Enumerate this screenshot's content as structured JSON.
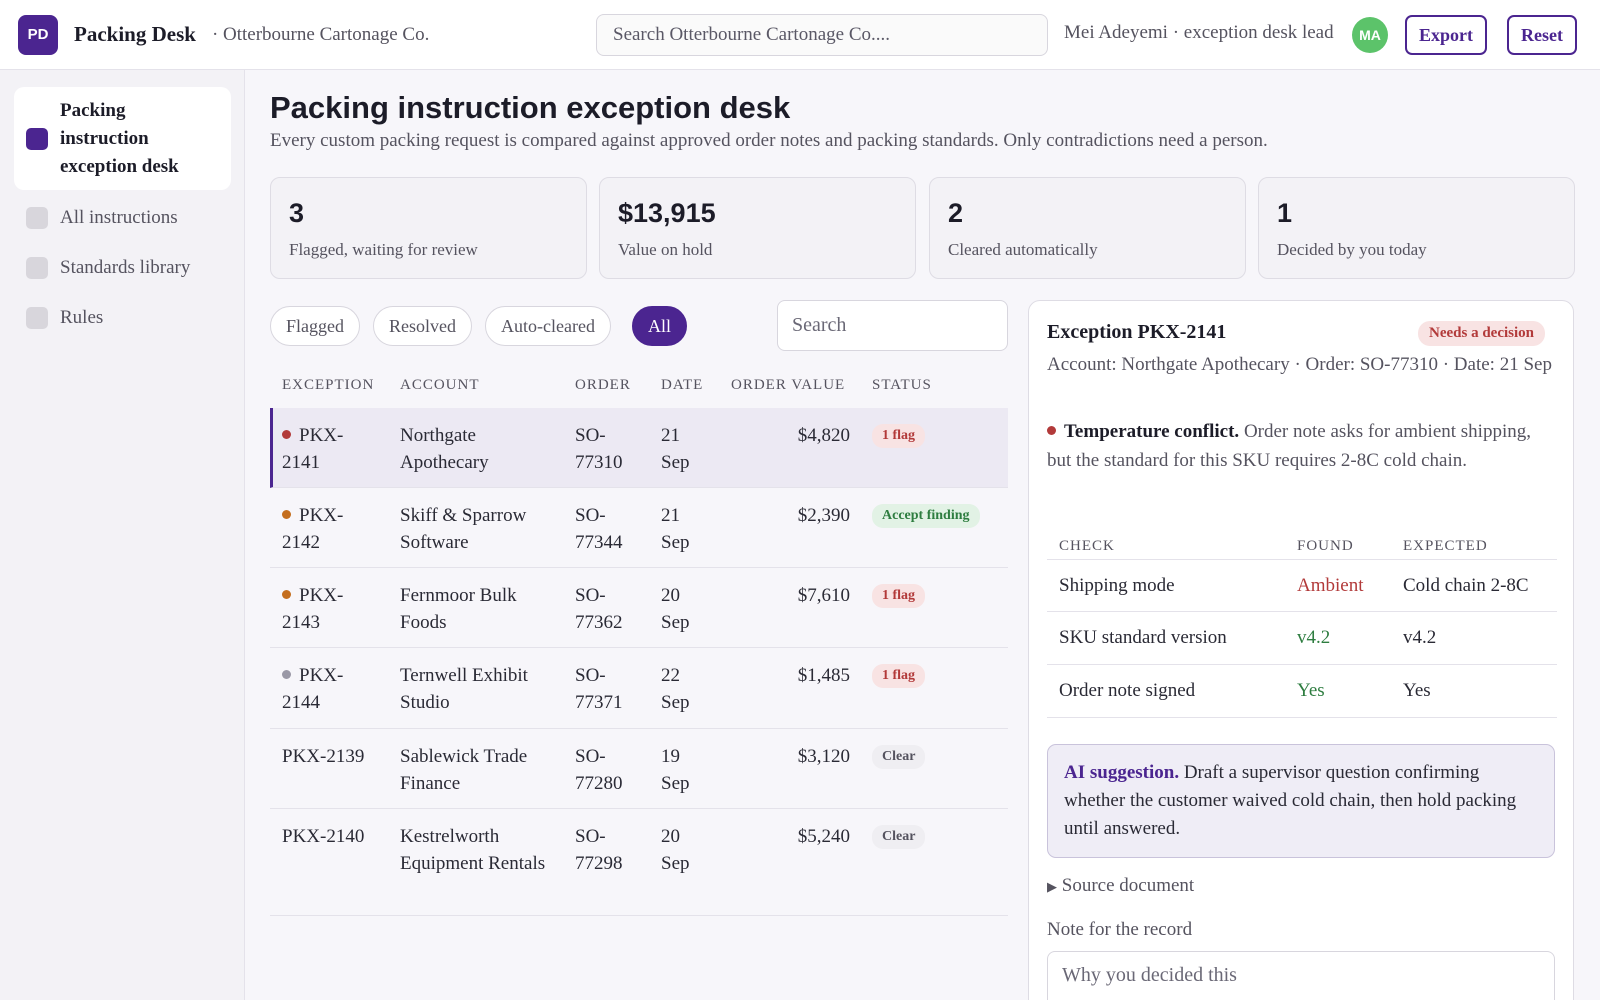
{
  "header": {
    "logo_text": "PD",
    "app_name": "Packing Desk",
    "org_name": "· Otterbourne Cartonage Co.",
    "search_placeholder": "Search Otterbourne Cartonage Co....",
    "user": "Mei Adeyemi · exception desk lead",
    "avatar_initials": "MA",
    "export_label": "Export",
    "reset_label": "Reset"
  },
  "sidebar": {
    "items": [
      {
        "label": "Packing instruction exception desk",
        "active": true
      },
      {
        "label": "All instructions",
        "active": false
      },
      {
        "label": "Standards library",
        "active": false
      },
      {
        "label": "Rules",
        "active": false
      }
    ]
  },
  "main": {
    "title": "Packing instruction exception desk",
    "subtitle": "Every custom packing request is compared against approved order notes and packing standards. Only contradictions need a person."
  },
  "stats": [
    {
      "value": "3",
      "label": "Flagged, waiting for review"
    },
    {
      "value": "$13,915",
      "label": "Value on hold"
    },
    {
      "value": "2",
      "label": "Cleared automatically"
    },
    {
      "value": "1",
      "label": "Decided by you today"
    }
  ],
  "filters": {
    "chips": [
      "Flagged",
      "Resolved",
      "Auto-cleared",
      "All"
    ],
    "active": "All",
    "search_placeholder": "Search"
  },
  "table": {
    "columns": [
      "EXCEPTION",
      "ACCOUNT",
      "ORDER",
      "DATE",
      "ORDER VALUE",
      "STATUS"
    ],
    "rows": [
      {
        "exception": "PKX-2141",
        "account": "Northgate Apothecary",
        "order": "SO-77310",
        "date": "21 Sep",
        "value": "$4,820",
        "status": "1 flag",
        "status_kind": "flag",
        "dot": "#b23a3a"
      },
      {
        "exception": "PKX-2142",
        "account": "Skiff & Sparrow Software",
        "order": "SO-77344",
        "date": "21 Sep",
        "value": "$2,390",
        "status": "Accept finding",
        "status_kind": "accept",
        "dot": "#c46e1e"
      },
      {
        "exception": "PKX-2143",
        "account": "Fernmoor Bulk Foods",
        "order": "SO-77362",
        "date": "20 Sep",
        "value": "$7,610",
        "status": "1 flag",
        "status_kind": "flag",
        "dot": "#c46e1e"
      },
      {
        "exception": "PKX-2144",
        "account": "Ternwell Exhibit Studio",
        "order": "SO-77371",
        "date": "22 Sep",
        "value": "$1,485",
        "status": "1 flag",
        "status_kind": "flag",
        "dot": "#9a98a6"
      },
      {
        "exception": "PKX-2139",
        "account": "Sablewick Trade Finance",
        "order": "SO-77280",
        "date": "19 Sep",
        "value": "$3,120",
        "status": "Clear",
        "status_kind": "clear",
        "dot": ""
      },
      {
        "exception": "PKX-2140",
        "account": "Kestrelworth Equipment Rentals",
        "order": "SO-77298",
        "date": "20 Sep",
        "value": "$5,240",
        "status": "Clear",
        "status_kind": "clear",
        "dot": ""
      }
    ]
  },
  "detail": {
    "title": "Exception PKX-2141",
    "badge": "Needs a decision",
    "meta": "Account: Northgate Apothecary · Order: SO-77310 · Date: 21 Sep",
    "finding_title": "Temperature conflict.",
    "finding_text": "Order note asks for ambient shipping, but the standard for this SKU requires 2-8C cold chain.",
    "check_columns": [
      "CHECK",
      "FOUND",
      "EXPECTED"
    ],
    "checks": [
      {
        "check": "Shipping mode",
        "found": "Ambient",
        "expected": "Cold chain 2-8C",
        "found_color": "#b23a3a"
      },
      {
        "check": "SKU standard version",
        "found": "v4.2",
        "expected": "v4.2",
        "found_color": "#2e7d40"
      },
      {
        "check": "Order note signed",
        "found": "Yes",
        "expected": "Yes",
        "found_color": "#2e7d40"
      }
    ],
    "ai_label": "AI suggestion.",
    "ai_text": "Draft a supervisor question confirming whether the customer waived cold chain, then hold packing until answered.",
    "source_doc": "Source document",
    "note_label": "Note for the record",
    "note_placeholder": "Why you decided this"
  },
  "colors": {
    "accent": "#4b2590",
    "flag": "#b23a3a",
    "ok": "#2e7d40"
  }
}
